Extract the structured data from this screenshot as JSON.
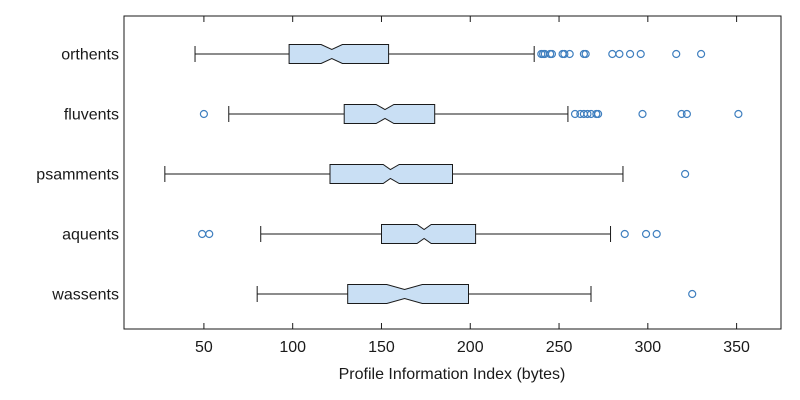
{
  "chart_data": {
    "type": "boxplot",
    "orientation": "horizontal",
    "notched": true,
    "xlabel": "Profile Information Index (bytes)",
    "ylabel": "",
    "xlim": [
      5,
      375
    ],
    "xticks": [
      50,
      100,
      150,
      200,
      250,
      300,
      350
    ],
    "grid": false,
    "box_fill": "#c9dff4",
    "outlier_color": "#3f7fbf",
    "line_color": "#1a1a1a",
    "categories": [
      "orthents",
      "fluvents",
      "psamments",
      "aquents",
      "wassents"
    ],
    "boxes": [
      {
        "label": "orthents",
        "whisker_low": 45,
        "q1": 98,
        "median": 122,
        "q3": 154,
        "whisker_high": 236,
        "notch_low": 116,
        "notch_high": 128,
        "outliers": [
          240,
          241,
          242,
          245,
          246,
          252,
          253,
          256,
          264,
          265,
          280,
          284,
          290,
          296,
          316,
          330
        ]
      },
      {
        "label": "fluvents",
        "whisker_low": 64,
        "q1": 129,
        "median": 152,
        "q3": 180,
        "whisker_high": 255,
        "notch_low": 147,
        "notch_high": 157,
        "outliers": [
          50,
          259,
          262,
          264,
          266,
          268,
          271,
          272,
          297,
          319,
          322,
          351
        ]
      },
      {
        "label": "psamments",
        "whisker_low": 28,
        "q1": 121,
        "median": 155,
        "q3": 190,
        "whisker_high": 286,
        "notch_low": 151,
        "notch_high": 160,
        "outliers": [
          321
        ]
      },
      {
        "label": "aquents",
        "whisker_low": 82,
        "q1": 150,
        "median": 174,
        "q3": 203,
        "whisker_high": 279,
        "notch_low": 170,
        "notch_high": 178,
        "outliers": [
          49,
          53,
          287,
          299,
          305
        ]
      },
      {
        "label": "wassents",
        "whisker_low": 80,
        "q1": 131,
        "median": 163,
        "q3": 199,
        "whisker_high": 268,
        "notch_low": 153,
        "notch_high": 173,
        "outliers": [
          325
        ]
      }
    ]
  }
}
